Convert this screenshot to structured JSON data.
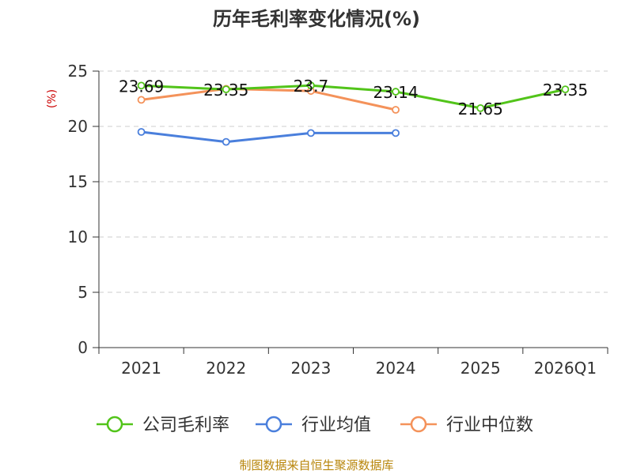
{
  "chart_data": {
    "type": "line",
    "title": "历年毛利率变化情况(%)",
    "ylabel": "(%)",
    "xlabel": "",
    "categories": [
      "2021",
      "2022",
      "2023",
      "2024",
      "2025",
      "2026Q1"
    ],
    "ylim": [
      0,
      25
    ],
    "yticks": [
      "0",
      "5",
      "10",
      "15",
      "20",
      "25"
    ],
    "grid": "horizontal dashed",
    "legend_position": "bottom",
    "series": [
      {
        "name": "公司毛利率",
        "color": "#52c41a",
        "values": [
          23.69,
          23.35,
          23.7,
          23.14,
          21.65,
          23.35
        ],
        "labels": [
          "23.69",
          "23.35",
          "23.7",
          "23.14",
          "21.65",
          "23.35"
        ]
      },
      {
        "name": "行业均值",
        "color": "#4a7fdc",
        "values": [
          19.5,
          18.6,
          19.4,
          19.4,
          null,
          null
        ]
      },
      {
        "name": "行业中位数",
        "color": "#f4925a",
        "values": [
          22.4,
          23.4,
          23.2,
          21.5,
          null,
          null
        ]
      }
    ],
    "source": "制图数据来自恒生聚源数据库"
  }
}
